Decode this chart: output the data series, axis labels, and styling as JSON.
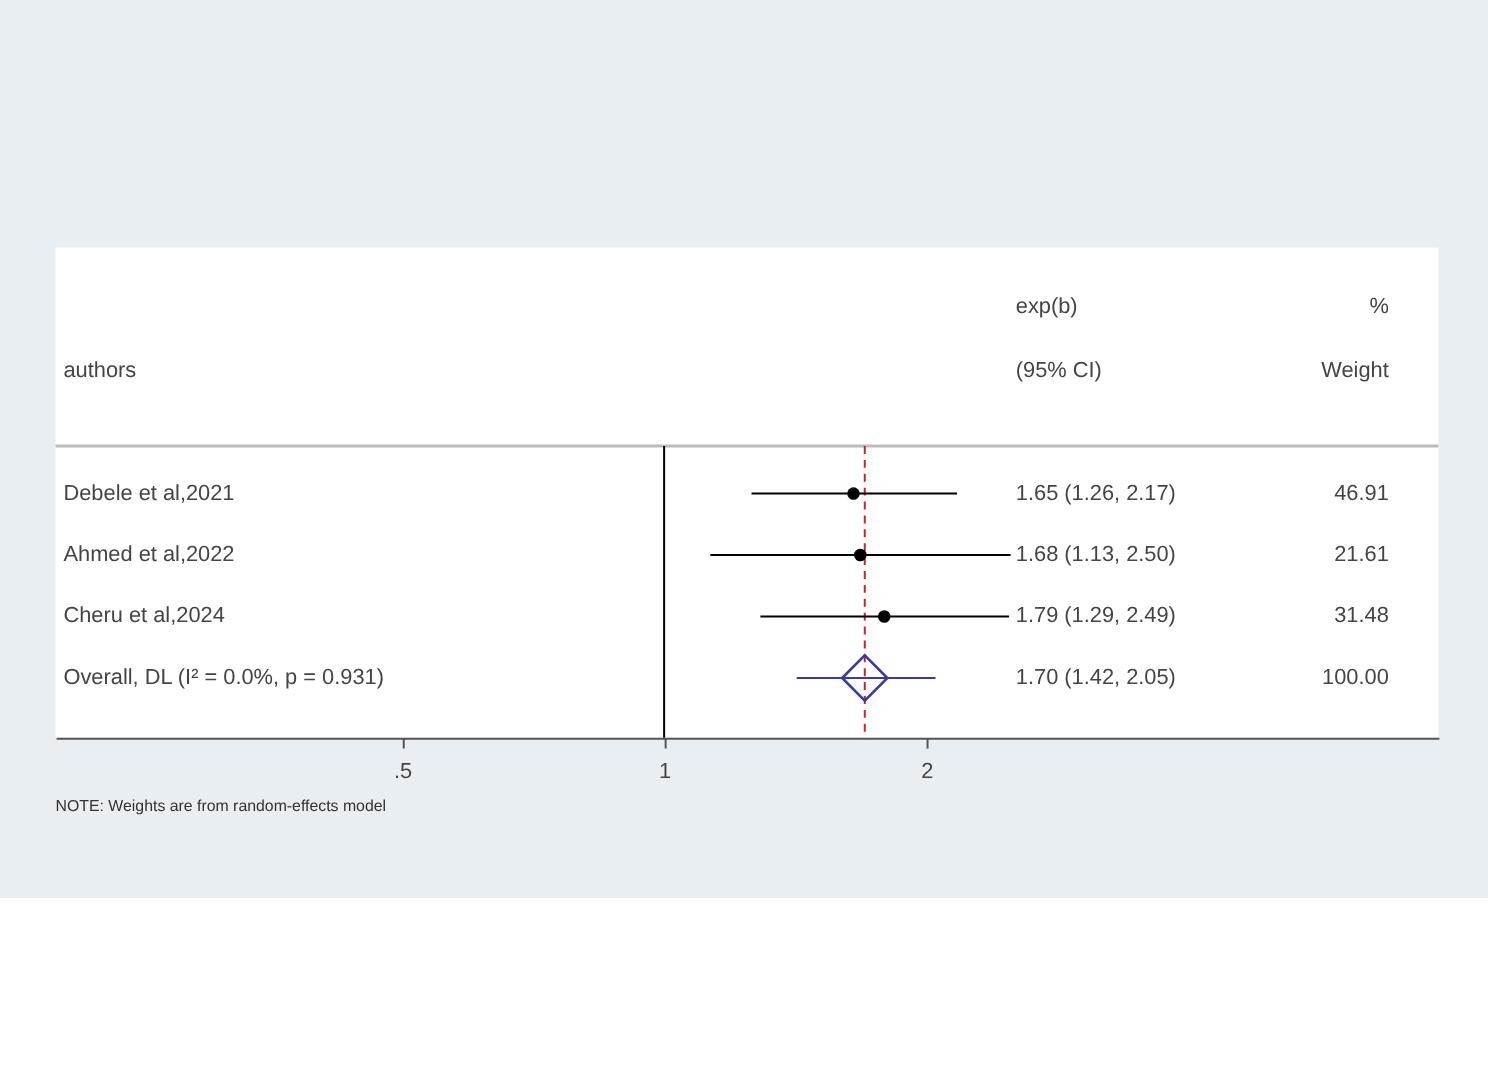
{
  "chart_data": {
    "type": "scatter",
    "orientation": "horizontal",
    "ylabel": "authors",
    "categories": [
      "Debele et al,2021",
      "Ahmed et al,2022",
      "Cheru et al,2024",
      "Overall, DL (I² = 0.0%, p = 0.931)"
    ],
    "series": [
      {
        "marker": "circle",
        "color": "#000000",
        "values": [
          1.65,
          1.68,
          1.79,
          null
        ],
        "errors": [
          [
            1.26,
            2.17
          ],
          [
            1.13,
            2.5
          ],
          [
            1.29,
            2.49
          ],
          null
        ]
      },
      {
        "marker": "diamond",
        "color": "#3a3aa0",
        "values": [
          null,
          null,
          null,
          1.7
        ],
        "errors": [
          null,
          null,
          null,
          [
            1.42,
            2.05
          ]
        ]
      }
    ],
    "value_labels": [
      "1.65 (1.26, 2.17)",
      "1.68 (1.13, 2.50)",
      "1.79 (1.29, 2.49)",
      "1.70 (1.42, 2.05)"
    ],
    "annotations": [
      "exp(b)",
      "(95% CI)",
      "%",
      "Weight",
      "46.91",
      "21.61",
      "31.48",
      "100.00",
      "NOTE: Weights are from random-effects model"
    ],
    "xlim": [
      0.2,
      7.75
    ],
    "xticks": [
      {
        "value": 0.5,
        "label": ".5"
      },
      1,
      2
    ],
    "log": "x",
    "grid": false,
    "ref_lines": [
      {
        "axis": "x",
        "value": 1,
        "color": "#000000",
        "line_style": "solid"
      },
      {
        "axis": "x",
        "value": 1.7,
        "color": "#cc2222",
        "line_style": "dashed"
      }
    ]
  }
}
